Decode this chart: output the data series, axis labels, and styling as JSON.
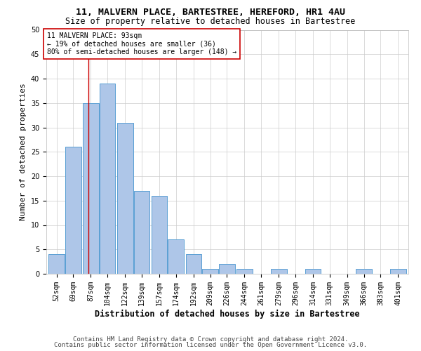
{
  "title1": "11, MALVERN PLACE, BARTESTREE, HEREFORD, HR1 4AU",
  "title2": "Size of property relative to detached houses in Bartestree",
  "xlabel": "Distribution of detached houses by size in Bartestree",
  "ylabel": "Number of detached properties",
  "footer1": "Contains HM Land Registry data © Crown copyright and database right 2024.",
  "footer2": "Contains public sector information licensed under the Open Government Licence v3.0.",
  "bins": [
    52,
    69,
    87,
    104,
    122,
    139,
    157,
    174,
    192,
    209,
    226,
    244,
    261,
    279,
    296,
    314,
    331,
    349,
    366,
    383,
    401
  ],
  "counts": [
    4,
    26,
    35,
    39,
    31,
    17,
    16,
    7,
    4,
    1,
    2,
    1,
    0,
    1,
    0,
    1,
    0,
    0,
    1,
    0,
    1
  ],
  "bar_color": "#aec6e8",
  "bar_edge_color": "#5a9fd4",
  "property_size": 93,
  "vline_color": "#cc0000",
  "annotation_line1": "11 MALVERN PLACE: 93sqm",
  "annotation_line2": "← 19% of detached houses are smaller (36)",
  "annotation_line3": "80% of semi-detached houses are larger (148) →",
  "annotation_box_color": "#ffffff",
  "annotation_border_color": "#cc0000",
  "ylim": [
    0,
    50
  ],
  "yticks": [
    0,
    5,
    10,
    15,
    20,
    25,
    30,
    35,
    40,
    45,
    50
  ],
  "background_color": "#ffffff",
  "grid_color": "#cccccc",
  "title1_fontsize": 9.5,
  "title2_fontsize": 8.5,
  "ylabel_fontsize": 8,
  "xlabel_fontsize": 8.5,
  "tick_fontsize": 7,
  "annotation_fontsize": 7,
  "footer_fontsize": 6.5
}
